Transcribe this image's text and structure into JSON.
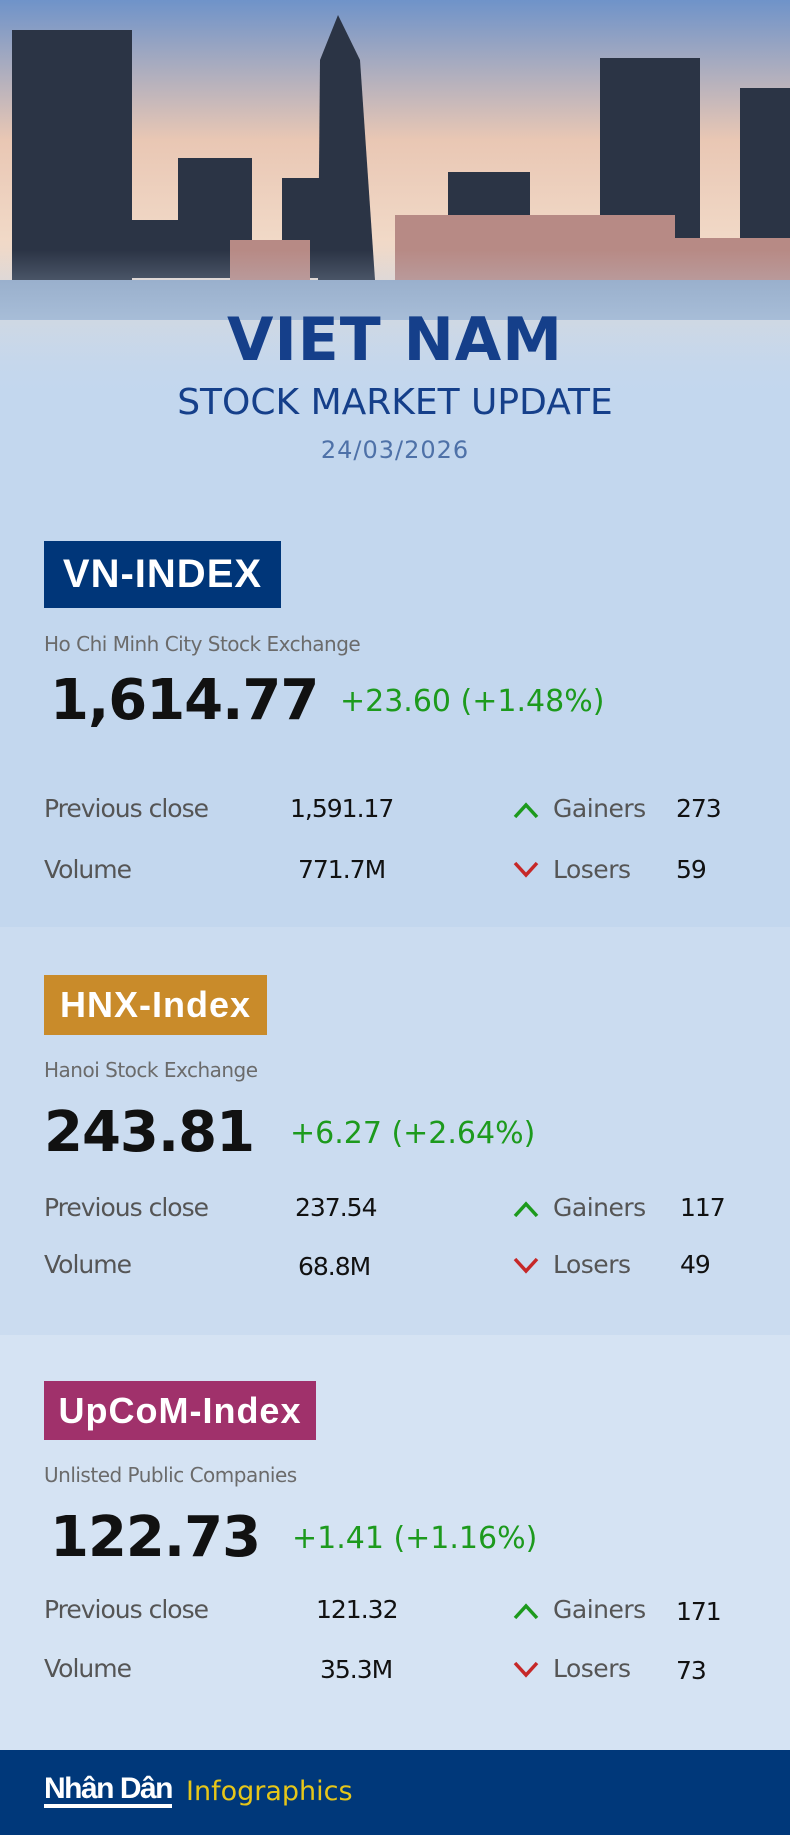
{
  "header": {
    "title": "VIET NAM",
    "subtitle": "STOCK MARKET UPDATE",
    "date": "24/03/2026"
  },
  "labels": {
    "previous_close": "Previous close",
    "volume": "Volume",
    "gainers": "Gainers",
    "losers": "Losers"
  },
  "indices": [
    {
      "name": "VN-INDEX",
      "exchange": "Ho Chi Minh City Stock Exchange",
      "value": "1,614.77",
      "change": "+23.60 (+1.48%)",
      "previous_close": "1,591.17",
      "volume": "771.7M",
      "gainers": "273",
      "losers": "59",
      "color": "#003679"
    },
    {
      "name": "HNX-Index",
      "exchange": "Hanoi Stock Exchange",
      "value": "243.81",
      "change": "+6.27 (+2.64%)",
      "previous_close": "237.54",
      "volume": "68.8M",
      "gainers": "117",
      "losers": "49",
      "color": "#c98b2a"
    },
    {
      "name": "UpCoM-Index",
      "exchange": "Unlisted Public Companies",
      "value": "122.73",
      "change": "+1.41 (+1.16%)",
      "previous_close": "121.32",
      "volume": "35.3M",
      "gainers": "171",
      "losers": "73",
      "color": "#a0316b"
    }
  ],
  "colors": {
    "up": "#1d9a1d",
    "down": "#c62828",
    "footer": "#00387a"
  },
  "footer": {
    "brand": "Nhân Dân",
    "label": "Infographics"
  }
}
